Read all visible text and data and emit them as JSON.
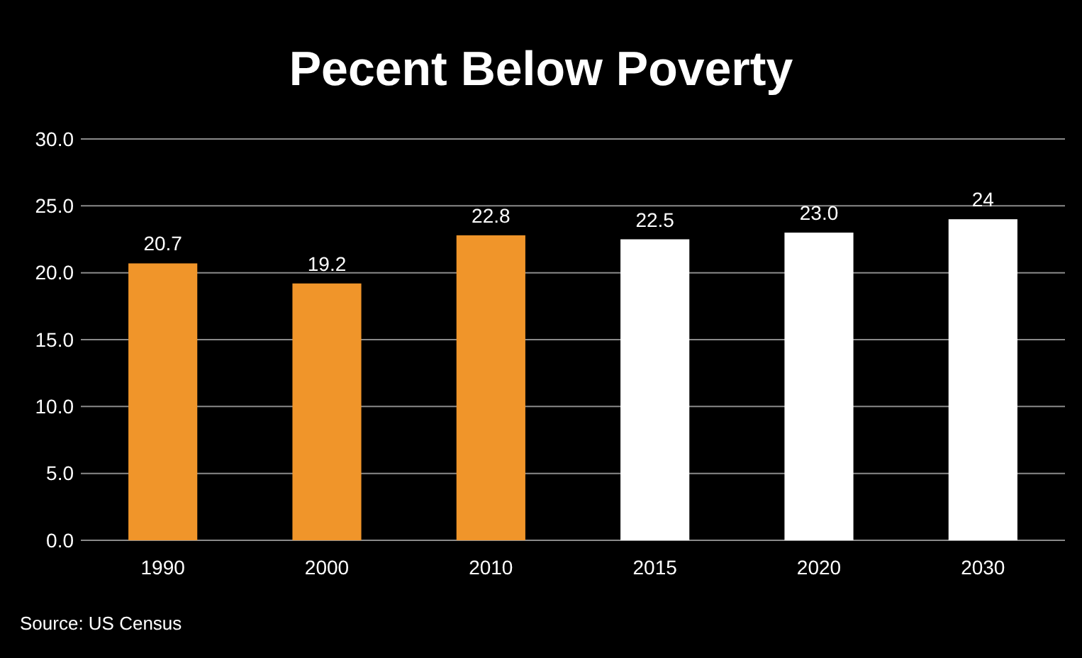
{
  "chart_data": {
    "type": "bar",
    "title": "Pecent Below Poverty",
    "categories": [
      "1990",
      "2000",
      "2010",
      "2015",
      "2020",
      "2030"
    ],
    "values": [
      20.7,
      19.2,
      22.8,
      22.5,
      23.0,
      24
    ],
    "colors": [
      "#f0952a",
      "#f0952a",
      "#f0952a",
      "#ffffff",
      "#ffffff",
      "#ffffff"
    ],
    "value_labels": [
      "20.7",
      "19.2",
      "22.8",
      "22.5",
      "23.0",
      "24"
    ],
    "ylim": [
      0,
      30
    ],
    "yticks": [
      {
        "value": 0,
        "label": "0.0"
      },
      {
        "value": 5,
        "label": "5.0"
      },
      {
        "value": 10,
        "label": "10.0"
      },
      {
        "value": 15,
        "label": "15.0"
      },
      {
        "value": 20,
        "label": "20.0"
      },
      {
        "value": 25,
        "label": "25.0"
      },
      {
        "value": 30,
        "label": "30.0"
      }
    ],
    "grid": "y",
    "annotations": [
      "Source: US Census"
    ]
  }
}
